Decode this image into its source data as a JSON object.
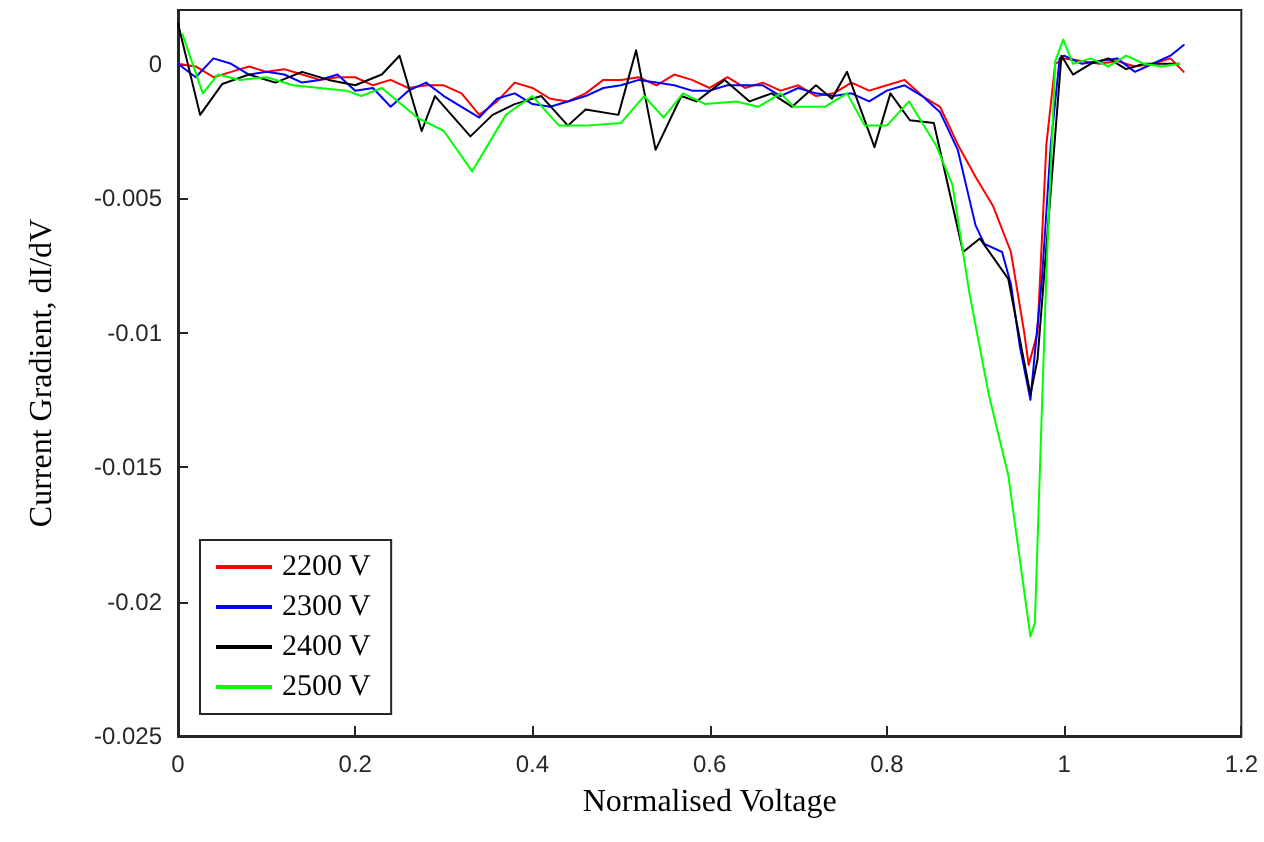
{
  "chart_data": {
    "type": "line",
    "xlabel": "Normalised Voltage",
    "ylabel": "Current Gradient, dI/dV",
    "xlim": [
      0,
      1.2
    ],
    "xticks": [
      0,
      0.2,
      0.4,
      0.6,
      0.8,
      1,
      1.2
    ],
    "ylim": [
      -0.025,
      0.002
    ],
    "yticks": [
      -0.025,
      -0.02,
      -0.015,
      -0.01,
      -0.005,
      0
    ],
    "grid": false,
    "legend": "bottom left",
    "marker": "none",
    "line_style": "solid",
    "series": [
      {
        "name": "2200 V",
        "color": "#ff0000",
        "x": [
          0,
          0.02,
          0.04,
          0.06,
          0.08,
          0.1,
          0.12,
          0.14,
          0.16,
          0.18,
          0.2,
          0.22,
          0.24,
          0.26,
          0.28,
          0.3,
          0.32,
          0.34,
          0.36,
          0.38,
          0.4,
          0.42,
          0.44,
          0.46,
          0.48,
          0.5,
          0.52,
          0.54,
          0.56,
          0.58,
          0.6,
          0.62,
          0.64,
          0.66,
          0.68,
          0.7,
          0.72,
          0.74,
          0.76,
          0.78,
          0.8,
          0.82,
          0.84,
          0.86,
          0.88,
          0.9,
          0.92,
          0.94,
          0.955,
          0.96,
          0.97,
          0.98,
          0.99,
          1,
          1.02,
          1.04,
          1.06,
          1.08,
          1.1,
          1.12,
          1.135
        ],
        "values": [
          0,
          -0.0001,
          -0.0005,
          -0.0003,
          -0.0001,
          -0.0003,
          -0.0002,
          -0.0004,
          -0.0006,
          -0.0005,
          -0.0005,
          -0.0008,
          -0.0006,
          -0.0009,
          -0.0008,
          -0.0008,
          -0.0011,
          -0.0019,
          -0.0014,
          -0.0007,
          -0.0009,
          -0.0013,
          -0.0014,
          -0.0011,
          -0.0006,
          -0.0006,
          -0.0005,
          -0.0008,
          -0.0004,
          -0.0006,
          -0.0009,
          -0.0005,
          -0.0009,
          -0.0007,
          -0.001,
          -0.0008,
          -0.0012,
          -0.0011,
          -0.0007,
          -0.001,
          -0.0008,
          -0.0006,
          -0.0012,
          -0.0016,
          -0.003,
          -0.0042,
          -0.0053,
          -0.007,
          -0.01,
          -0.0112,
          -0.01,
          -0.003,
          0,
          0.0002,
          0.0001,
          0,
          0.0001,
          -0.0001,
          0,
          0.0002,
          -0.0003
        ]
      },
      {
        "name": "2300 V",
        "color": "#0000ff",
        "x": [
          0,
          0.02,
          0.04,
          0.06,
          0.08,
          0.1,
          0.12,
          0.14,
          0.16,
          0.18,
          0.2,
          0.22,
          0.24,
          0.26,
          0.28,
          0.3,
          0.32,
          0.34,
          0.36,
          0.38,
          0.4,
          0.42,
          0.44,
          0.46,
          0.48,
          0.5,
          0.52,
          0.54,
          0.56,
          0.58,
          0.6,
          0.62,
          0.64,
          0.66,
          0.68,
          0.7,
          0.72,
          0.74,
          0.76,
          0.78,
          0.8,
          0.82,
          0.84,
          0.86,
          0.88,
          0.9,
          0.91,
          0.93,
          0.94,
          0.95,
          0.962,
          0.975,
          0.985,
          0.995,
          1,
          1.02,
          1.04,
          1.06,
          1.08,
          1.1,
          1.12,
          1.135
        ],
        "values": [
          0,
          -0.0005,
          0.0002,
          0,
          -0.0004,
          -0.0003,
          -0.0004,
          -0.0007,
          -0.0006,
          -0.0004,
          -0.001,
          -0.0009,
          -0.0016,
          -0.001,
          -0.0007,
          -0.0012,
          -0.0016,
          -0.002,
          -0.0013,
          -0.0011,
          -0.0015,
          -0.0016,
          -0.0014,
          -0.0012,
          -0.0009,
          -0.0008,
          -0.0006,
          -0.0007,
          -0.0008,
          -0.001,
          -0.001,
          -0.0008,
          -0.0008,
          -0.0008,
          -0.0012,
          -0.0009,
          -0.0011,
          -0.0012,
          -0.0011,
          -0.0014,
          -0.001,
          -0.0008,
          -0.0012,
          -0.0018,
          -0.0032,
          -0.006,
          -0.0067,
          -0.007,
          -0.0082,
          -0.0105,
          -0.0125,
          -0.008,
          -0.003,
          0.0002,
          0.0003,
          0,
          0.0001,
          0.0002,
          -0.0003,
          0,
          0.0003,
          0.0007
        ]
      },
      {
        "name": "2400 V",
        "color": "#000000",
        "x": [
          0,
          0.025,
          0.05,
          0.08,
          0.11,
          0.14,
          0.17,
          0.2,
          0.23,
          0.25,
          0.275,
          0.29,
          0.33,
          0.355,
          0.38,
          0.41,
          0.44,
          0.46,
          0.497,
          0.517,
          0.539,
          0.568,
          0.585,
          0.617,
          0.645,
          0.67,
          0.693,
          0.72,
          0.738,
          0.755,
          0.786,
          0.804,
          0.826,
          0.853,
          0.886,
          0.905,
          0.937,
          0.962,
          0.97,
          0.997,
          1.01,
          1.03,
          1.05,
          1.07,
          1.09,
          1.11,
          1.13
        ],
        "values": [
          0.0015,
          -0.0019,
          -0.00075,
          -0.0004,
          -0.0007,
          -0.0003,
          -0.0006,
          -0.0008,
          -0.0004,
          0.0003,
          -0.0025,
          -0.0012,
          -0.0027,
          -0.0019,
          -0.0015,
          -0.0012,
          -0.0023,
          -0.0017,
          -0.0019,
          0.0005,
          -0.0032,
          -0.0012,
          -0.0014,
          -0.0006,
          -0.0014,
          -0.0011,
          -0.0016,
          -0.0008,
          -0.0013,
          -0.0003,
          -0.0031,
          -0.0011,
          -0.0021,
          -0.0022,
          -0.007,
          -0.0065,
          -0.008,
          -0.0123,
          -0.011,
          0.0003,
          -0.0004,
          0,
          0.0002,
          -0.0002,
          0,
          0,
          0
        ]
      },
      {
        "name": "2500 V",
        "color": "#00ff00",
        "x": [
          0.005,
          0.028,
          0.045,
          0.07,
          0.1,
          0.13,
          0.16,
          0.19,
          0.207,
          0.23,
          0.27,
          0.3,
          0.332,
          0.37,
          0.4,
          0.43,
          0.46,
          0.5,
          0.526,
          0.548,
          0.57,
          0.595,
          0.63,
          0.655,
          0.68,
          0.695,
          0.73,
          0.755,
          0.775,
          0.8,
          0.825,
          0.855,
          0.874,
          0.893,
          0.915,
          0.937,
          0.962,
          0.967,
          0.98,
          0.99,
          0.999,
          1.01,
          1.03,
          1.05,
          1.07,
          1.09,
          1.11,
          1.13
        ],
        "values": [
          0.0011,
          -0.0011,
          -0.0004,
          -0.0006,
          -0.0005,
          -0.0008,
          -0.0009,
          -0.001,
          -0.0012,
          -0.0009,
          -0.002,
          -0.0025,
          -0.004,
          -0.0019,
          -0.0012,
          -0.0023,
          -0.0023,
          -0.0022,
          -0.0012,
          -0.002,
          -0.0011,
          -0.0015,
          -0.0014,
          -0.0016,
          -0.0011,
          -0.0016,
          -0.0016,
          -0.0011,
          -0.0023,
          -0.0023,
          -0.0014,
          -0.003,
          -0.0045,
          -0.0085,
          -0.0123,
          -0.0153,
          -0.0213,
          -0.0208,
          -0.0078,
          0.0001,
          0.0009,
          0,
          0.0002,
          -0.0001,
          0.0003,
          0,
          -0.0001,
          0
        ]
      }
    ]
  }
}
